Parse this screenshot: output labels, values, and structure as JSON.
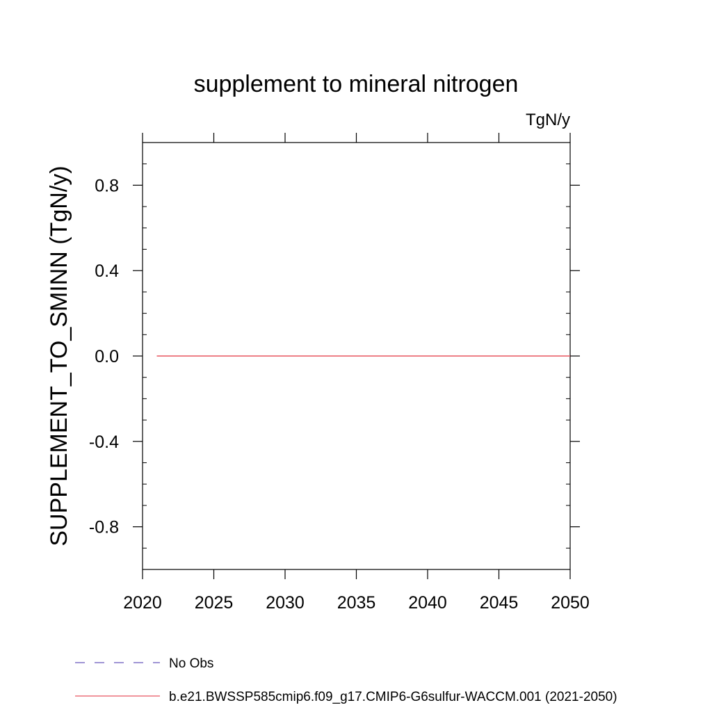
{
  "chart_data": {
    "type": "line",
    "title": "supplement to mineral nitrogen",
    "units_label": "TgN/y",
    "ylabel": "SUPPLEMENT_TO_SMINN  (TgN/y)",
    "xlabel": "",
    "xlim": [
      2020,
      2050
    ],
    "ylim": [
      -1.0,
      1.0
    ],
    "x_ticks": [
      2020,
      2025,
      2030,
      2035,
      2040,
      2045,
      2050
    ],
    "x_tick_labels": [
      "2020",
      "2025",
      "2030",
      "2035",
      "2040",
      "2045",
      "2050"
    ],
    "y_ticks": [
      0.8,
      0.4,
      0.0,
      -0.4,
      -0.8
    ],
    "y_tick_labels": [
      "0.8",
      "0.4",
      "0.0",
      "-0.4",
      "-0.8"
    ],
    "grid": false,
    "legend_position": "bottom",
    "series": [
      {
        "name": "No Obs",
        "color": "#6655bb",
        "dash": "dashed",
        "x": [],
        "y": []
      },
      {
        "name": "b.e21.BWSSP585cmip6.f09_g17.CMIP6-G6sulfur-WACCM.001 (2021-2050)",
        "color": "#e8555f",
        "dash": "solid",
        "x": [
          2021,
          2050
        ],
        "y": [
          0.0,
          0.0
        ]
      }
    ]
  }
}
